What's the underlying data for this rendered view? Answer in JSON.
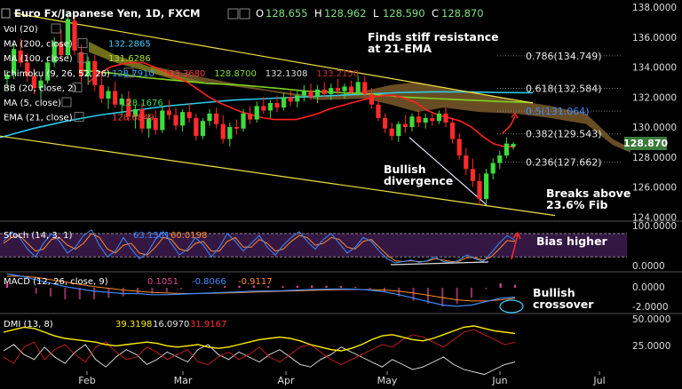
{
  "header": {
    "symbol": "Euro Fx/Japanese Yen, 1D, FXCM",
    "ohlc": [
      {
        "k": "O",
        "v": "128.655"
      },
      {
        "k": "H",
        "v": "128.962"
      },
      {
        "k": "L",
        "v": "128.590"
      },
      {
        "k": "C",
        "v": "128.870"
      }
    ]
  },
  "indicators": [
    {
      "label": "Vol (20)",
      "values": [],
      "colors": []
    },
    {
      "label": "MA (200, close)",
      "values": [
        "132.2865"
      ],
      "colors": [
        "#3fd0ff"
      ]
    },
    {
      "label": "MA (100, close)",
      "values": [
        "131.6286"
      ],
      "colors": [
        "#a6e22e"
      ]
    },
    {
      "label": "Ichimoku (9, 26, 52, 26)",
      "values": [
        "128.7910",
        "133.3680",
        "128.8700",
        "132.1308",
        "133.2150"
      ],
      "colors": [
        "#2aa7ff",
        "#ff3b3b",
        "#7bdc3a",
        "#d9d9d9",
        "#c23030"
      ]
    },
    {
      "label": "BB (20, close, 2)",
      "values": [],
      "colors": []
    },
    {
      "label": "MA (5, close)",
      "values": [
        "128.1676"
      ],
      "colors": [
        "#2fe04a"
      ]
    },
    {
      "label": "EMA (21, close)",
      "values": [
        "128.6849"
      ],
      "colors": [
        "#ff4040"
      ]
    }
  ],
  "annotations": {
    "resistance": [
      "Finds stiff resistance",
      "at 21-EMA"
    ],
    "bullish_divergence": [
      "Bullish",
      "divergence"
    ],
    "breaks": [
      "Breaks above",
      "23.6% Fib"
    ],
    "bias": "Bias higher",
    "crossover": [
      "Bullish",
      "crossover"
    ]
  },
  "fib_levels": [
    {
      "label": "0.786(134.749)",
      "value": 134.749,
      "color": "#e8e8e8"
    },
    {
      "label": "0.618(132.584)",
      "value": 132.584,
      "color": "#e8e8e8"
    },
    {
      "label": "0.5(131.064)",
      "value": 131.064,
      "color": "#3d8bff"
    },
    {
      "label": "0.382(129.543)",
      "value": 129.543,
      "color": "#e8e8e8"
    },
    {
      "label": "0.236(127.662)",
      "value": 127.662,
      "color": "#e8e8e8"
    }
  ],
  "price_axis": {
    "ticks": [
      "138.0000",
      "136.0000",
      "134.0000",
      "132.0000",
      "130.0000",
      "128.0000",
      "126.0000",
      "124.0000"
    ],
    "current": "128.870"
  },
  "x_axis": {
    "ticks": [
      "Feb",
      "Mar",
      "Apr",
      "May",
      "Jun",
      "Jul"
    ]
  },
  "stoch": {
    "label": "Stoch (14, 3, 1)",
    "values": [
      "63.1501",
      "60.0198"
    ],
    "colors": [
      "#3d8bff",
      "#ff8a2a"
    ],
    "ticks": [
      "100.0000",
      "0.0000"
    ]
  },
  "macd": {
    "label": "MACD (12, 26, close, 9)",
    "values": [
      "0.1051",
      "-0.8066",
      "-0.9117"
    ],
    "colors": [
      "#e040a0",
      "#3d8bff",
      "#ff8a2a"
    ],
    "ticks": [
      "0.0000",
      "-2.0000"
    ]
  },
  "dmi": {
    "label": "DMI (13, 8)",
    "values": [
      "39.3198",
      "16.0970",
      "31.9167"
    ],
    "colors": [
      "#ffee00",
      "#e8e8e8",
      "#ff3030"
    ],
    "ticks": [
      "50.0000",
      "25.0000"
    ]
  },
  "colors": {
    "background": "#000000",
    "bull_candle": "#3ddc3d",
    "bear_candle": "#ff2a2a",
    "ema21": "#ff2020",
    "ma200": "#2ec8e8",
    "ma100": "#7ed321",
    "trendline": "#f0e040",
    "cloud": "#7a5a2a",
    "current_price_bg": "#3a7a3a"
  },
  "chart_data": {
    "type": "candlestick",
    "price_range": [
      123.9,
      138.0
    ],
    "candles": [
      [
        133.2,
        133.8,
        132.5,
        133.5
      ],
      [
        133.5,
        135.6,
        133.2,
        135.2
      ],
      [
        135.1,
        135.9,
        134.0,
        134.3
      ],
      [
        134.3,
        134.9,
        133.0,
        133.4
      ],
      [
        133.4,
        133.9,
        132.2,
        132.6
      ],
      [
        132.6,
        133.4,
        131.9,
        133.1
      ],
      [
        133.1,
        134.6,
        132.9,
        134.3
      ],
      [
        134.3,
        136.0,
        134.0,
        135.7
      ],
      [
        135.6,
        136.5,
        134.5,
        134.8
      ],
      [
        134.8,
        137.6,
        134.6,
        137.2
      ],
      [
        137.1,
        137.4,
        134.8,
        135.1
      ],
      [
        135.0,
        135.5,
        133.0,
        133.4
      ],
      [
        133.4,
        134.7,
        132.8,
        134.4
      ],
      [
        134.4,
        134.8,
        132.4,
        132.8
      ],
      [
        132.8,
        133.5,
        131.6,
        131.9
      ],
      [
        131.9,
        132.7,
        131.2,
        132.4
      ],
      [
        132.4,
        133.0,
        131.3,
        131.5
      ],
      [
        131.5,
        132.2,
        130.8,
        131.9
      ],
      [
        131.9,
        132.4,
        130.4,
        130.7
      ],
      [
        130.7,
        131.5,
        129.9,
        131.2
      ],
      [
        131.2,
        131.6,
        129.6,
        129.9
      ],
      [
        129.9,
        130.9,
        129.3,
        130.6
      ],
      [
        130.6,
        131.1,
        129.5,
        129.8
      ],
      [
        129.8,
        131.4,
        129.6,
        131.1
      ],
      [
        131.1,
        131.8,
        130.5,
        130.8
      ],
      [
        130.8,
        131.3,
        129.8,
        130.1
      ],
      [
        130.1,
        131.2,
        129.7,
        131.0
      ],
      [
        131.0,
        131.6,
        130.3,
        130.6
      ],
      [
        130.6,
        130.9,
        129.1,
        129.4
      ],
      [
        129.4,
        130.6,
        129.2,
        130.4
      ],
      [
        130.4,
        131.2,
        130.1,
        130.9
      ],
      [
        130.9,
        131.3,
        129.9,
        130.2
      ],
      [
        130.2,
        130.8,
        128.9,
        129.2
      ],
      [
        129.2,
        130.3,
        128.7,
        130.0
      ],
      [
        130.0,
        130.5,
        129.5,
        129.9
      ],
      [
        129.9,
        131.2,
        129.7,
        130.9
      ],
      [
        130.9,
        131.4,
        130.2,
        130.5
      ],
      [
        130.5,
        131.7,
        130.3,
        131.4
      ],
      [
        131.4,
        132.0,
        130.9,
        131.1
      ],
      [
        131.1,
        131.8,
        130.6,
        131.6
      ],
      [
        131.6,
        132.1,
        131.0,
        131.3
      ],
      [
        131.3,
        132.3,
        131.1,
        132.0
      ],
      [
        132.0,
        132.5,
        131.4,
        131.7
      ],
      [
        131.7,
        132.4,
        131.3,
        132.1
      ],
      [
        132.1,
        132.8,
        131.7,
        132.4
      ],
      [
        132.4,
        132.9,
        131.8,
        132.0
      ],
      [
        132.0,
        132.8,
        131.6,
        132.5
      ],
      [
        132.5,
        133.0,
        132.0,
        132.2
      ],
      [
        132.2,
        132.9,
        131.8,
        132.6
      ],
      [
        132.6,
        133.2,
        132.1,
        132.4
      ],
      [
        132.4,
        132.9,
        131.9,
        132.7
      ],
      [
        132.7,
        133.1,
        132.2,
        132.3
      ],
      [
        132.3,
        133.4,
        132.1,
        133.0
      ],
      [
        133.0,
        133.4,
        132.0,
        132.2
      ],
      [
        132.2,
        132.6,
        131.2,
        131.5
      ],
      [
        131.5,
        131.9,
        130.4,
        130.6
      ],
      [
        130.6,
        130.9,
        129.6,
        129.9
      ],
      [
        129.9,
        130.3,
        129.1,
        129.4
      ],
      [
        129.4,
        130.4,
        129.0,
        130.2
      ],
      [
        130.2,
        130.8,
        129.6,
        130.0
      ],
      [
        130.0,
        130.9,
        129.7,
        130.7
      ],
      [
        130.7,
        131.1,
        130.0,
        130.3
      ],
      [
        130.3,
        130.9,
        129.9,
        130.6
      ],
      [
        130.6,
        131.0,
        130.1,
        130.4
      ],
      [
        130.4,
        131.1,
        130.2,
        130.9
      ],
      [
        130.9,
        131.3,
        130.0,
        130.3
      ],
      [
        130.3,
        130.6,
        128.9,
        129.2
      ],
      [
        129.2,
        129.6,
        127.8,
        128.1
      ],
      [
        128.1,
        128.6,
        126.8,
        127.2
      ],
      [
        127.2,
        127.9,
        126.0,
        126.4
      ],
      [
        126.4,
        126.9,
        124.8,
        125.2
      ],
      [
        125.2,
        127.2,
        124.9,
        126.9
      ],
      [
        126.9,
        127.9,
        126.5,
        127.6
      ],
      [
        127.6,
        128.4,
        127.2,
        128.1
      ],
      [
        128.1,
        129.3,
        127.9,
        128.9
      ],
      [
        128.7,
        129.0,
        128.5,
        128.87
      ]
    ],
    "ema21_line": [
      133.0,
      133.6,
      134.0,
      134.2,
      134.3,
      134.3,
      134.0,
      133.7,
      133.3,
      133.0,
      132.5,
      132.0,
      131.6,
      131.3,
      131.0,
      130.8,
      130.6,
      130.5,
      130.5,
      130.5,
      130.7,
      130.9,
      131.2,
      131.4,
      131.6,
      131.8,
      132.0,
      132.1,
      132.1,
      131.9,
      131.6,
      131.1,
      130.8,
      130.6,
      130.4,
      130.0,
      129.4,
      128.9,
      128.7,
      128.68
    ],
    "ma200_line": [
      129.3,
      129.9,
      130.4,
      130.8,
      131.1,
      131.4,
      131.6,
      131.8,
      131.9,
      132.0,
      132.1,
      132.2,
      132.3,
      132.35,
      132.35,
      132.3,
      132.29
    ],
    "ma100_line": [
      133.8,
      133.6,
      133.3,
      133.1,
      132.9,
      132.8,
      132.6,
      132.4,
      132.3,
      132.2,
      132.0,
      131.9,
      131.8,
      131.7,
      131.63
    ],
    "trendline_upper": [
      [
        1,
        137.6
      ],
      [
        64,
        131.6
      ]
    ],
    "trendline_lower": [
      [
        -2,
        129.4
      ],
      [
        70,
        124.1
      ]
    ],
    "divergence_line": [
      [
        57,
        129.3
      ],
      [
        69,
        124.8
      ]
    ],
    "stoch_k": [
      60,
      85,
      70,
      40,
      20,
      55,
      80,
      60,
      30,
      45,
      75,
      90,
      50,
      20,
      35,
      70,
      40,
      15,
      30,
      65,
      85,
      55,
      25,
      40,
      70,
      50,
      20,
      45,
      80,
      60,
      35,
      55,
      75,
      45,
      25,
      50,
      70,
      85,
      60,
      40,
      65,
      80,
      55,
      30,
      45,
      70,
      60,
      35,
      15,
      5,
      8,
      12,
      6,
      10,
      20,
      8,
      5,
      12,
      25,
      15,
      8,
      30,
      55,
      75,
      63
    ],
    "stoch_d": [
      55,
      70,
      75,
      55,
      35,
      40,
      65,
      70,
      50,
      40,
      55,
      80,
      70,
      40,
      30,
      50,
      55,
      30,
      25,
      45,
      70,
      65,
      40,
      35,
      55,
      60,
      35,
      35,
      60,
      70,
      45,
      45,
      65,
      55,
      35,
      40,
      60,
      75,
      70,
      50,
      55,
      70,
      65,
      45,
      40,
      60,
      65,
      45,
      25,
      10,
      8,
      10,
      8,
      9,
      15,
      12,
      8,
      9,
      18,
      18,
      12,
      20,
      40,
      62,
      60
    ],
    "dmi_adx": [
      40,
      42,
      44,
      43,
      40,
      37,
      35,
      34,
      33,
      32,
      30,
      29,
      30,
      31,
      32,
      31,
      29,
      28,
      29,
      30,
      28,
      27,
      28,
      30,
      32,
      34,
      35,
      36,
      35,
      33,
      30,
      28,
      26,
      25,
      27,
      30,
      34,
      37,
      38,
      36,
      34,
      33,
      35,
      38,
      41,
      44,
      45,
      43,
      41,
      40,
      39
    ],
    "dmi_plus": [
      25,
      30,
      22,
      18,
      28,
      20,
      15,
      24,
      30,
      18,
      12,
      20,
      26,
      22,
      14,
      18,
      24,
      20,
      16,
      26,
      30,
      22,
      18,
      24,
      20,
      16,
      22,
      26,
      20,
      14,
      12,
      18,
      22,
      28,
      24,
      20,
      16,
      12,
      18,
      14,
      10,
      12,
      16,
      20,
      14,
      10,
      8,
      6,
      10,
      14,
      16
    ],
    "dmi_minus": [
      20,
      15,
      28,
      32,
      18,
      26,
      30,
      22,
      16,
      28,
      32,
      24,
      18,
      20,
      28,
      24,
      18,
      22,
      26,
      16,
      14,
      20,
      24,
      18,
      22,
      28,
      20,
      16,
      22,
      28,
      30,
      24,
      18,
      14,
      18,
      22,
      26,
      30,
      28,
      34,
      38,
      36,
      32,
      28,
      34,
      40,
      42,
      38,
      34,
      30,
      32
    ],
    "macd_line": [
      1.2,
      1.0,
      0.7,
      0.4,
      0.1,
      -0.1,
      -0.3,
      -0.4,
      -0.5,
      -0.5,
      -0.6,
      -0.6,
      -0.55,
      -0.5,
      -0.45,
      -0.4,
      -0.35,
      -0.3,
      -0.28,
      -0.25,
      -0.2,
      -0.15,
      -0.12,
      -0.1,
      -0.12,
      -0.2,
      -0.35,
      -0.6,
      -0.9,
      -1.2,
      -1.5,
      -1.6,
      -1.5,
      -1.2,
      -0.9,
      -0.81
    ],
    "macd_signal": [
      1.0,
      1.0,
      0.9,
      0.7,
      0.5,
      0.3,
      0.1,
      -0.05,
      -0.2,
      -0.3,
      -0.4,
      -0.45,
      -0.5,
      -0.5,
      -0.48,
      -0.45,
      -0.42,
      -0.38,
      -0.34,
      -0.3,
      -0.27,
      -0.23,
      -0.19,
      -0.16,
      -0.15,
      -0.16,
      -0.2,
      -0.3,
      -0.45,
      -0.65,
      -0.85,
      -1.05,
      -1.15,
      -1.15,
      -1.05,
      -0.91
    ]
  }
}
